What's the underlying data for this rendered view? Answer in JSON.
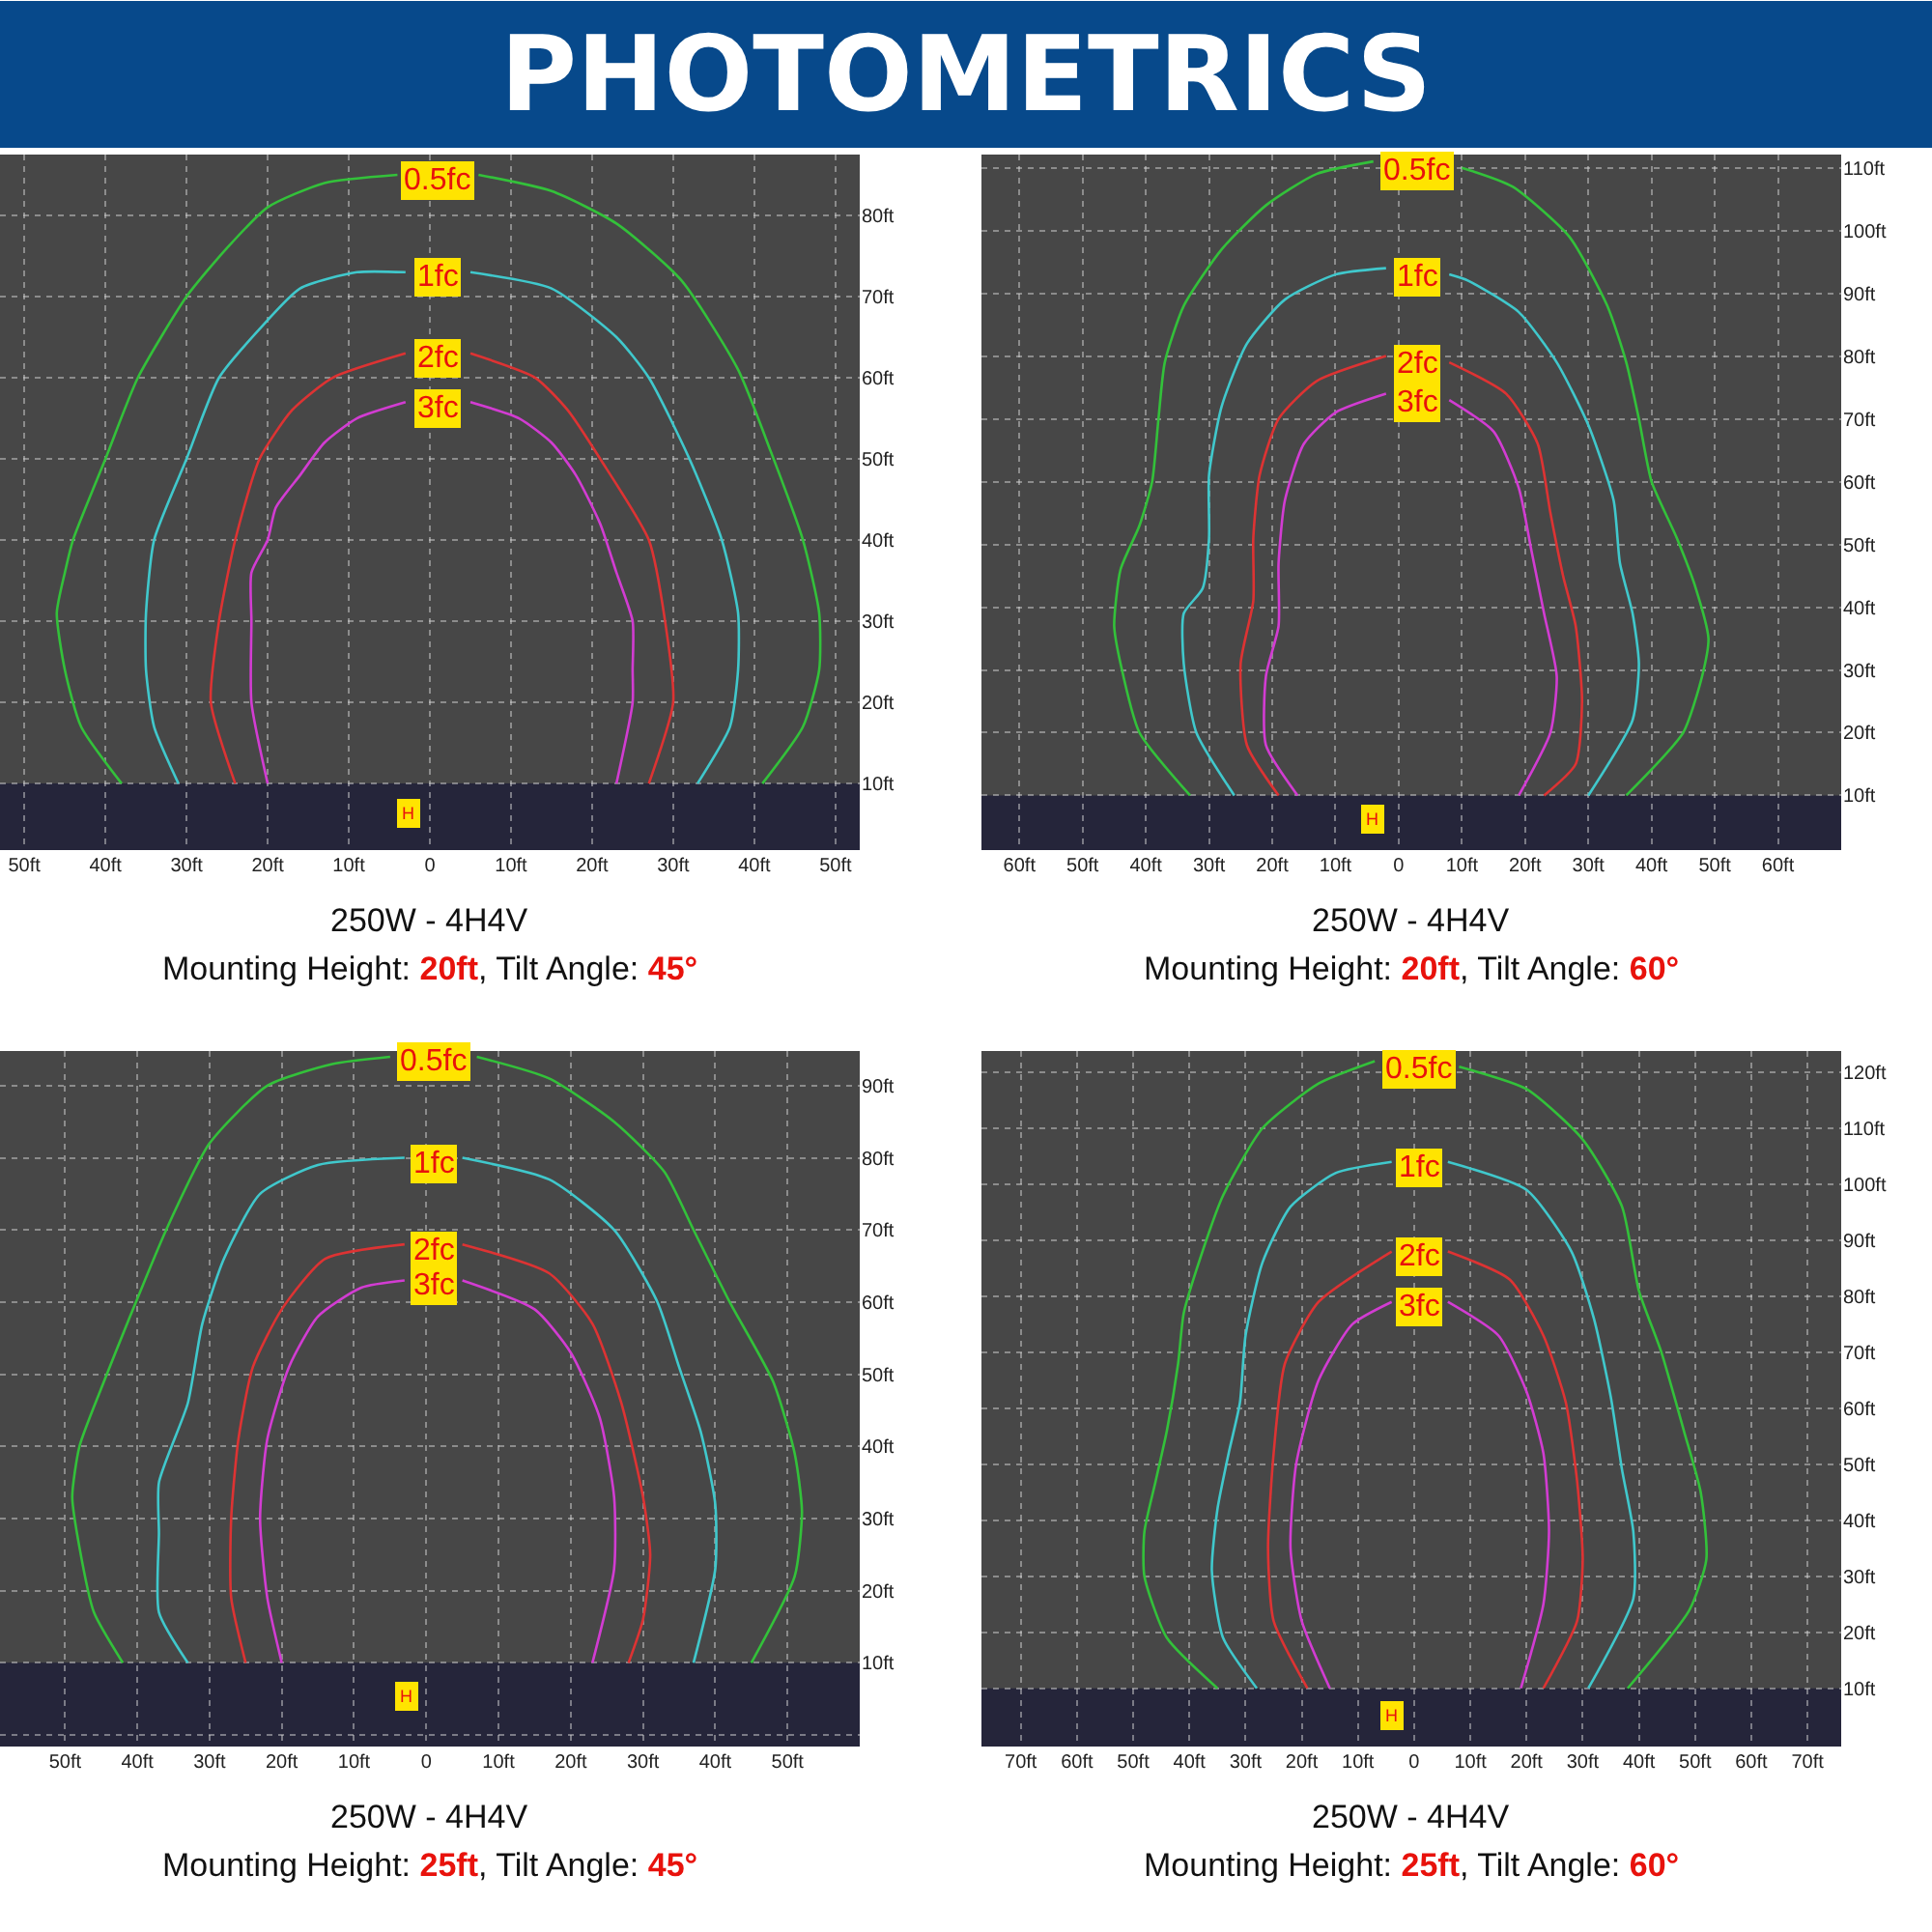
{
  "chart_data": [
    {
      "type": "line",
      "title": "PHOTOMETRICS",
      "grid": true,
      "xlim": [
        -53,
        53
      ],
      "ylim": [
        1.8,
        87.5
      ],
      "xticks": [
        {
          "value": -50,
          "label": "50ft"
        },
        {
          "value": -40,
          "label": "40ft"
        },
        {
          "value": -30,
          "label": "30ft"
        },
        {
          "value": -20,
          "label": "20ft"
        },
        {
          "value": -10,
          "label": "10ft"
        },
        {
          "value": 0,
          "label": "0"
        },
        {
          "value": 10,
          "label": "10ft"
        },
        {
          "value": 20,
          "label": "20ft"
        },
        {
          "value": 30,
          "label": "30ft"
        },
        {
          "value": 40,
          "label": "40ft"
        },
        {
          "value": 50,
          "label": "50ft"
        }
      ],
      "yticks": [
        {
          "value": 10,
          "label": "10ft"
        },
        {
          "value": 20,
          "label": "20ft"
        },
        {
          "value": 30,
          "label": "30ft"
        },
        {
          "value": 40,
          "label": "40ft"
        },
        {
          "value": 50,
          "label": "50ft"
        },
        {
          "value": 60,
          "label": "60ft"
        },
        {
          "value": 70,
          "label": "70ft"
        },
        {
          "value": 80,
          "label": "80ft"
        }
      ],
      "bands": [
        {
          "axis": "y",
          "from": 1.8,
          "to": 10,
          "color": "#25253a"
        }
      ],
      "series": [
        {
          "name": "0.5fc",
          "color": "#33c13a",
          "x": [
            -38,
            -43,
            -45,
            -46,
            -45,
            -44,
            -40,
            -36,
            -30,
            -25,
            -20,
            -13,
            -4,
            1,
            6,
            15,
            23,
            31,
            38,
            42,
            46,
            48,
            48,
            46,
            41
          ],
          "values": [
            10,
            17,
            24,
            31,
            36,
            40,
            50,
            60,
            70,
            76,
            81,
            84,
            85,
            null,
            85,
            83,
            79,
            72,
            61,
            51,
            40,
            31,
            24,
            17,
            10
          ]
        },
        {
          "name": "1fc",
          "color": "#40c8cc",
          "x": [
            -31,
            -34,
            -35,
            -35,
            -34,
            -30,
            -26,
            -21,
            -16,
            -9,
            -3,
            1,
            5,
            15,
            23,
            27,
            32,
            36,
            38,
            38,
            37,
            33
          ],
          "values": [
            10,
            17,
            24,
            31,
            40,
            50,
            60,
            66,
            71,
            73,
            73,
            null,
            73,
            71,
            65,
            60,
            50,
            40,
            31,
            24,
            17,
            10
          ]
        },
        {
          "name": "2fc",
          "color": "#dd3333",
          "x": [
            -24,
            -27,
            -26,
            -24,
            -21,
            -17,
            -12,
            -3,
            1,
            5,
            13,
            17,
            21,
            27,
            29,
            30,
            27
          ],
          "values": [
            10,
            20,
            30,
            40,
            50,
            56,
            60,
            63,
            null,
            63,
            60,
            56,
            50,
            40,
            30,
            20,
            10
          ]
        },
        {
          "name": "3fc",
          "color": "#d23cd2",
          "x": [
            -20,
            -22,
            -22,
            -22,
            -20,
            -19,
            -16,
            -13,
            -9,
            -3,
            1,
            5,
            11,
            15,
            18,
            21,
            23,
            25,
            25,
            25,
            23
          ],
          "values": [
            10,
            20,
            30,
            36,
            40,
            44,
            48,
            52,
            55,
            57,
            null,
            57,
            55,
            52,
            48,
            42,
            36,
            30,
            24,
            20,
            10
          ]
        }
      ],
      "annotations": [
        {
          "text": "H",
          "x": -2.7,
          "y": 6.4
        },
        "250W - 4H4V",
        "Mounting Height: 20ft, Tilt Angle: 45°"
      ]
    },
    {
      "type": "line",
      "grid": true,
      "xlim": [
        -66,
        70
      ],
      "ylim": [
        1.3,
        112.1
      ],
      "xticks": [
        {
          "value": -60,
          "label": "60ft"
        },
        {
          "value": -50,
          "label": "50ft"
        },
        {
          "value": -40,
          "label": "40ft"
        },
        {
          "value": -30,
          "label": "30ft"
        },
        {
          "value": -20,
          "label": "20ft"
        },
        {
          "value": -10,
          "label": "10ft"
        },
        {
          "value": 0,
          "label": "0"
        },
        {
          "value": 10,
          "label": "10ft"
        },
        {
          "value": 20,
          "label": "20ft"
        },
        {
          "value": 30,
          "label": "30ft"
        },
        {
          "value": 40,
          "label": "40ft"
        },
        {
          "value": 50,
          "label": "50ft"
        },
        {
          "value": 60,
          "label": "60ft"
        }
      ],
      "yticks": [
        {
          "value": 10,
          "label": "10ft"
        },
        {
          "value": 20,
          "label": "20ft"
        },
        {
          "value": 30,
          "label": "30ft"
        },
        {
          "value": 40,
          "label": "40ft"
        },
        {
          "value": 50,
          "label": "50ft"
        },
        {
          "value": 60,
          "label": "60ft"
        },
        {
          "value": 70,
          "label": "70ft"
        },
        {
          "value": 80,
          "label": "80ft"
        },
        {
          "value": 90,
          "label": "90ft"
        },
        {
          "value": 100,
          "label": "100ft"
        },
        {
          "value": 110,
          "label": "110ft"
        }
      ],
      "bands": [
        {
          "axis": "y",
          "from": 1.3,
          "to": 10,
          "color": "#25253a"
        }
      ],
      "series": [
        {
          "name": "0.5fc",
          "color": "#33c13a",
          "x": [
            -33,
            -41,
            -44,
            -45,
            -44,
            -41,
            -39,
            -38,
            -37,
            -34,
            -28,
            -21,
            -13,
            -4,
            3,
            10,
            18,
            27,
            33,
            36,
            38,
            40,
            44,
            47,
            49,
            48,
            45,
            36
          ],
          "values": [
            10,
            20,
            31,
            37,
            46,
            53,
            60,
            70,
            79,
            88,
            97,
            104,
            109,
            111,
            null,
            110,
            107,
            99,
            88,
            79,
            70,
            60,
            51,
            43,
            35,
            29,
            20,
            10
          ]
        },
        {
          "name": "1fc",
          "color": "#40c8cc",
          "x": [
            -26,
            -32,
            -34,
            -34,
            -31,
            -30,
            -30,
            -28,
            -24,
            -18,
            -10,
            -2,
            3,
            8,
            11,
            19,
            25,
            30,
            34,
            35,
            37,
            38,
            37,
            30
          ],
          "values": [
            10,
            20,
            31,
            39,
            43,
            51,
            61,
            72,
            82,
            89,
            93,
            94,
            null,
            93,
            92,
            87,
            79,
            69,
            57,
            47,
            39,
            31,
            22,
            10
          ]
        },
        {
          "name": "2fc",
          "color": "#dd3333",
          "x": [
            -19,
            -24,
            -25,
            -23,
            -23,
            -22,
            -19,
            -13,
            -2,
            3,
            8,
            17,
            22,
            24,
            26,
            28,
            29,
            28,
            23
          ],
          "values": [
            10,
            18,
            31,
            41,
            51,
            61,
            70,
            76,
            80,
            null,
            79,
            74,
            66,
            55,
            45,
            37,
            25,
            15,
            10
          ]
        },
        {
          "name": "3fc",
          "color": "#d23cd2",
          "x": [
            -16,
            -21,
            -21,
            -19,
            -19,
            -18,
            -15,
            -10,
            -2,
            3,
            8,
            15,
            19,
            21,
            23,
            25,
            24,
            19
          ],
          "values": [
            10,
            18,
            29,
            37,
            47,
            57,
            66,
            71,
            74,
            null,
            73,
            68,
            59,
            49,
            39,
            29,
            20,
            10
          ]
        }
      ],
      "annotations": [
        {
          "text": "H",
          "x": -4,
          "y": 6.1
        },
        "250W - 4H4V",
        "Mounting Height: 20ft, Tilt Angle: 60°"
      ]
    },
    {
      "type": "line",
      "grid": true,
      "xlim": [
        -59,
        60
      ],
      "ylim": [
        -1.6,
        94.8
      ],
      "xticks": [
        {
          "value": -50,
          "label": "50ft"
        },
        {
          "value": -40,
          "label": "40ft"
        },
        {
          "value": -30,
          "label": "30ft"
        },
        {
          "value": -20,
          "label": "20ft"
        },
        {
          "value": -10,
          "label": "10ft"
        },
        {
          "value": 0,
          "label": "0"
        },
        {
          "value": 10,
          "label": "10ft"
        },
        {
          "value": 20,
          "label": "20ft"
        },
        {
          "value": 30,
          "label": "30ft"
        },
        {
          "value": 40,
          "label": "40ft"
        },
        {
          "value": 50,
          "label": "50ft"
        }
      ],
      "yticks": [
        {
          "value": 0,
          "label": null
        },
        {
          "value": 10,
          "label": "10ft"
        },
        {
          "value": 20,
          "label": "20ft"
        },
        {
          "value": 30,
          "label": "30ft"
        },
        {
          "value": 40,
          "label": "40ft"
        },
        {
          "value": 50,
          "label": "50ft"
        },
        {
          "value": 60,
          "label": "60ft"
        },
        {
          "value": 70,
          "label": "70ft"
        },
        {
          "value": 80,
          "label": "80ft"
        },
        {
          "value": 90,
          "label": "90ft"
        }
      ],
      "bands": [
        {
          "axis": "y",
          "from": -1.6,
          "to": 10,
          "color": "#25253a"
        }
      ],
      "series": [
        {
          "name": "0.5fc",
          "color": "#33c13a",
          "x": [
            -42,
            -46,
            -48,
            -49,
            -48,
            -45,
            -41,
            -36,
            -30,
            -22,
            -13,
            -5,
            1,
            7,
            17,
            26,
            33,
            37,
            42,
            48,
            51,
            52,
            51,
            45
          ],
          "values": [
            10,
            17,
            26,
            33,
            40,
            48,
            58,
            70,
            82,
            90,
            93,
            94,
            null,
            94,
            91,
            85,
            78,
            70,
            60,
            49,
            39,
            31,
            22,
            10
          ]
        },
        {
          "name": "1fc",
          "color": "#40c8cc",
          "x": [
            -33,
            -37,
            -37,
            -37,
            -33,
            -31,
            -28,
            -23,
            -15,
            -3,
            1,
            5,
            17,
            26,
            32,
            35,
            38,
            40,
            40,
            37
          ],
          "values": [
            10,
            17,
            28,
            35,
            46,
            57,
            66,
            75,
            79,
            80,
            null,
            80,
            77,
            70,
            60,
            51,
            42,
            32,
            23,
            10
          ]
        },
        {
          "name": "2fc",
          "color": "#dd3333",
          "x": [
            -25,
            -27,
            -27,
            -26,
            -24,
            -20,
            -14,
            -3,
            1,
            5,
            17,
            23,
            27,
            30,
            31,
            30,
            28
          ],
          "values": [
            10,
            19,
            30,
            41,
            51,
            59,
            66,
            68,
            null,
            68,
            64,
            57,
            46,
            33,
            25,
            16,
            10
          ]
        },
        {
          "name": "3fc",
          "color": "#d23cd2",
          "x": [
            -20,
            -22,
            -23,
            -22,
            -19,
            -15,
            -9,
            -3,
            1,
            5,
            15,
            20,
            24,
            26,
            26,
            23
          ],
          "values": [
            10,
            19,
            30,
            41,
            51,
            58,
            62,
            63,
            null,
            63,
            59,
            53,
            44,
            33,
            23,
            10
          ]
        }
      ],
      "annotations": [
        {
          "text": "H",
          "x": -2.8,
          "y": 5.3
        },
        "250W - 4H4V",
        "Mounting Height: 25ft, Tilt Angle: 45°"
      ]
    },
    {
      "type": "line",
      "grid": true,
      "xlim": [
        -77,
        76
      ],
      "ylim": [
        -0.4,
        123.8
      ],
      "xticks": [
        {
          "value": -70,
          "label": "70ft"
        },
        {
          "value": -60,
          "label": "60ft"
        },
        {
          "value": -50,
          "label": "50ft"
        },
        {
          "value": -40,
          "label": "40ft"
        },
        {
          "value": -30,
          "label": "30ft"
        },
        {
          "value": -20,
          "label": "20ft"
        },
        {
          "value": -10,
          "label": "10ft"
        },
        {
          "value": 0,
          "label": "0"
        },
        {
          "value": 10,
          "label": "10ft"
        },
        {
          "value": 20,
          "label": "20ft"
        },
        {
          "value": 30,
          "label": "30ft"
        },
        {
          "value": 40,
          "label": "40ft"
        },
        {
          "value": 50,
          "label": "50ft"
        },
        {
          "value": 60,
          "label": "60ft"
        },
        {
          "value": 70,
          "label": "70ft"
        }
      ],
      "yticks": [
        {
          "value": 10,
          "label": "10ft"
        },
        {
          "value": 20,
          "label": "20ft"
        },
        {
          "value": 30,
          "label": "30ft"
        },
        {
          "value": 40,
          "label": "40ft"
        },
        {
          "value": 50,
          "label": "50ft"
        },
        {
          "value": 60,
          "label": "60ft"
        },
        {
          "value": 70,
          "label": "70ft"
        },
        {
          "value": 80,
          "label": "80ft"
        },
        {
          "value": 90,
          "label": "90ft"
        },
        {
          "value": 100,
          "label": "100ft"
        },
        {
          "value": 110,
          "label": "110ft"
        },
        {
          "value": 120,
          "label": "120ft"
        }
      ],
      "bands": [
        {
          "axis": "y",
          "from": -0.4,
          "to": 10,
          "color": "#25253a"
        }
      ],
      "series": [
        {
          "name": "0.5fc",
          "color": "#33c13a",
          "x": [
            -35,
            -44,
            -48,
            -48,
            -46,
            -44,
            -42,
            -41,
            -38,
            -34,
            -27,
            -17,
            -7,
            1,
            8,
            20,
            30,
            37,
            40,
            44,
            48,
            51,
            52,
            49,
            38
          ],
          "values": [
            10,
            19,
            30,
            38,
            47,
            56,
            68,
            77,
            87,
            98,
            110,
            118,
            122,
            null,
            121,
            117,
            108,
            96,
            81,
            70,
            56,
            45,
            33,
            24,
            10
          ]
        },
        {
          "name": "1fc",
          "color": "#40c8cc",
          "x": [
            -28,
            -34,
            -36,
            -35,
            -33,
            -31,
            -30,
            -27,
            -22,
            -14,
            -4,
            1,
            6,
            20,
            28,
            32,
            35,
            37,
            39,
            39,
            31
          ],
          "values": [
            10,
            19,
            31,
            42,
            52,
            61,
            73,
            86,
            96,
            102,
            104,
            null,
            104,
            99,
            88,
            76,
            62,
            49,
            38,
            26,
            10
          ]
        },
        {
          "name": "2fc",
          "color": "#dd3333",
          "x": [
            -19,
            -25,
            -26,
            -25,
            -23,
            -17,
            -4,
            1,
            6,
            17,
            23,
            27,
            29,
            30,
            29,
            23
          ],
          "values": [
            10,
            22,
            35,
            52,
            68,
            79,
            88,
            null,
            88,
            83,
            73,
            61,
            47,
            33,
            22,
            10
          ]
        },
        {
          "name": "3fc",
          "color": "#d23cd2",
          "x": [
            -15,
            -20,
            -22,
            -21,
            -17,
            -11,
            -4,
            1,
            6,
            15,
            20,
            23,
            24,
            23,
            19
          ],
          "values": [
            10,
            22,
            35,
            50,
            65,
            75,
            79,
            null,
            79,
            73,
            63,
            52,
            38,
            25,
            10
          ]
        }
      ],
      "annotations": [
        {
          "text": "H",
          "x": -4.1,
          "y": 5.0
        },
        "250W - 4H4V",
        "Mounting Height: 25ft, Tilt Angle: 60°"
      ]
    }
  ]
}
